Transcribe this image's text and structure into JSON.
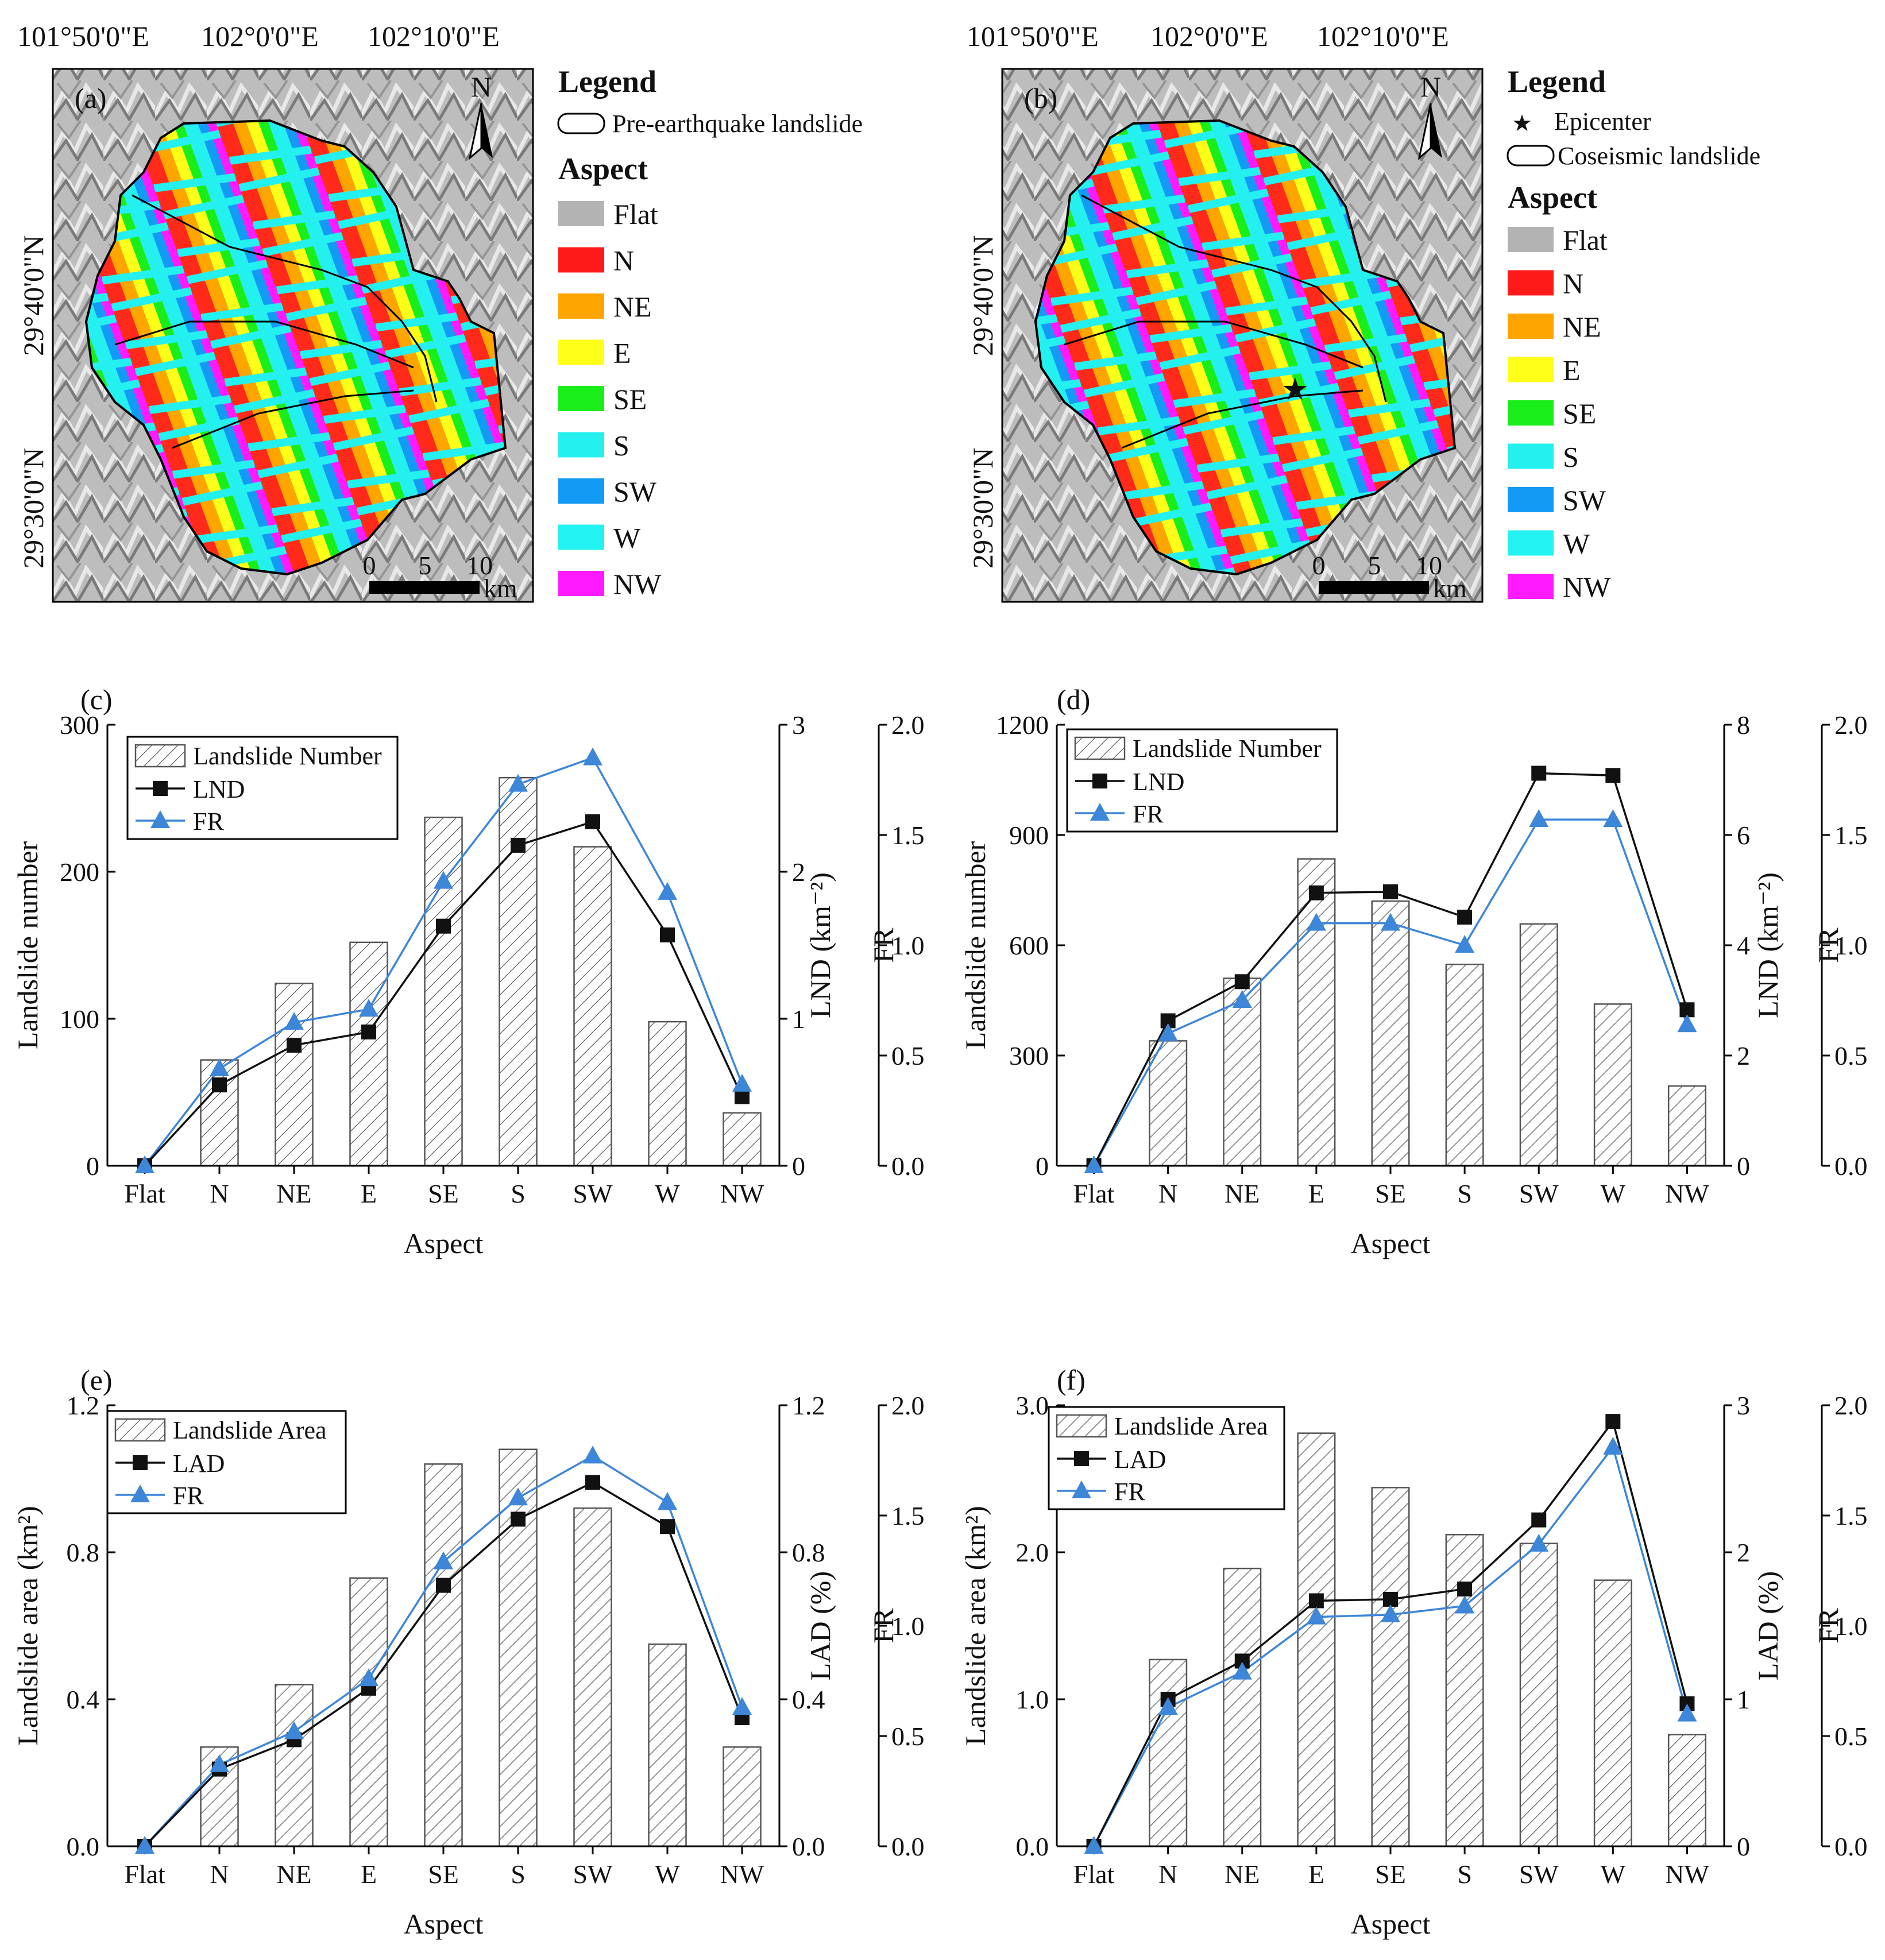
{
  "maps": [
    {
      "panel_label": "(a)",
      "top_coords": [
        "101°50'0\"E",
        "102°0'0\"E",
        "102°10'0\"E"
      ],
      "side_coords": [
        "29°40'0\"N",
        "29°30'0\"N"
      ],
      "north_label": "N",
      "scale_values": [
        "0",
        "5",
        "10"
      ],
      "scale_unit": "km",
      "legend_title": "Legend",
      "legend_items": [
        {
          "symbol": "outline",
          "label": "Pre-earthquake landslide"
        }
      ],
      "aspect_title": "Aspect",
      "aspect_classes": [
        {
          "label": "Flat",
          "color": "#b3b3b3"
        },
        {
          "label": "N",
          "color": "#ff1a1a"
        },
        {
          "label": "NE",
          "color": "#ffa500"
        },
        {
          "label": "E",
          "color": "#ffff1a"
        },
        {
          "label": "SE",
          "color": "#1aee1a"
        },
        {
          "label": "S",
          "color": "#25f0f0"
        },
        {
          "label": "SW",
          "color": "#129af5"
        },
        {
          "label": "W",
          "color": "#22f2f2"
        },
        {
          "label": "NW",
          "color": "#ff1aff"
        }
      ]
    },
    {
      "panel_label": "(b)",
      "top_coords": [
        "101°50'0\"E",
        "102°0'0\"E",
        "102°10'0\"E"
      ],
      "side_coords": [
        "29°40'0\"N",
        "29°30'0\"N"
      ],
      "north_label": "N",
      "scale_values": [
        "0",
        "5",
        "10"
      ],
      "scale_unit": "km",
      "legend_title": "Legend",
      "legend_items": [
        {
          "symbol": "star",
          "label": "Epicenter"
        },
        {
          "symbol": "outline",
          "label": "Coseismic landslide"
        }
      ],
      "aspect_title": "Aspect",
      "aspect_classes": [
        {
          "label": "Flat",
          "color": "#b3b3b3"
        },
        {
          "label": "N",
          "color": "#ff1a1a"
        },
        {
          "label": "NE",
          "color": "#ffa500"
        },
        {
          "label": "E",
          "color": "#ffff1a"
        },
        {
          "label": "SE",
          "color": "#1aee1a"
        },
        {
          "label": "S",
          "color": "#25f0f0"
        },
        {
          "label": "SW",
          "color": "#129af5"
        },
        {
          "label": "W",
          "color": "#22f2f2"
        },
        {
          "label": "NW",
          "color": "#ff1aff"
        }
      ]
    }
  ],
  "chart_data": [
    {
      "panel_label": "(c)",
      "type": "bar",
      "categories": [
        "Flat",
        "N",
        "NE",
        "E",
        "SE",
        "S",
        "SW",
        "W",
        "NW"
      ],
      "xlabel": "Aspect",
      "ylabel": "Landslide number",
      "y2label": "LND (km⁻²)",
      "y3label": "FR",
      "ylim": [
        0,
        300
      ],
      "yticks": [
        0,
        100,
        200,
        300
      ],
      "y2lim": [
        0,
        3
      ],
      "y2ticks": [
        0,
        1,
        2,
        3
      ],
      "y3lim": [
        0,
        2
      ],
      "y3ticks": [
        "0.0",
        "0.5",
        "1.0",
        "1.5",
        "2.0"
      ],
      "bars": {
        "name": "Landslide Number",
        "values": [
          0,
          72,
          124,
          152,
          237,
          264,
          217,
          98,
          36
        ]
      },
      "line": {
        "name": "LND",
        "values": [
          0,
          0.55,
          0.82,
          0.91,
          1.63,
          2.18,
          2.34,
          1.57,
          0.47
        ]
      },
      "fr": {
        "name": "FR",
        "values": [
          0,
          0.44,
          0.65,
          0.71,
          1.29,
          1.73,
          1.85,
          1.24,
          0.37
        ]
      }
    },
    {
      "panel_label": "(d)",
      "type": "bar",
      "categories": [
        "Flat",
        "N",
        "NE",
        "E",
        "SE",
        "S",
        "SW",
        "W",
        "NW"
      ],
      "xlabel": "Aspect",
      "ylabel": "Landslide number",
      "y2label": "LND (km⁻²)",
      "y3label": "FR",
      "ylim": [
        0,
        1200
      ],
      "yticks": [
        0,
        300,
        600,
        900,
        1200
      ],
      "y2lim": [
        0,
        8
      ],
      "y2ticks": [
        0,
        2,
        4,
        6,
        8
      ],
      "y3lim": [
        0,
        2
      ],
      "y3ticks": [
        "0.0",
        "0.5",
        "1.0",
        "1.5",
        "2.0"
      ],
      "bars": {
        "name": "Landslide Number",
        "values": [
          0,
          340,
          510,
          835,
          720,
          548,
          658,
          440,
          217
        ]
      },
      "line": {
        "name": "LND",
        "values": [
          0,
          2.63,
          3.34,
          4.95,
          4.97,
          4.51,
          7.12,
          7.08,
          2.83
        ]
      },
      "fr": {
        "name": "FR",
        "values": [
          0,
          0.6,
          0.75,
          1.1,
          1.1,
          1.0,
          1.57,
          1.57,
          0.64
        ]
      }
    },
    {
      "panel_label": "(e)",
      "type": "bar",
      "categories": [
        "Flat",
        "N",
        "NE",
        "E",
        "SE",
        "S",
        "SW",
        "W",
        "NW"
      ],
      "xlabel": "Aspect",
      "ylabel": "Landslide area (km²)",
      "y2label": "LAD (%)",
      "y3label": "FR",
      "ylim": [
        0,
        1.2
      ],
      "yticks": [
        "0.0",
        "0.4",
        "0.8",
        "1.2"
      ],
      "y2lim": [
        0,
        1.2
      ],
      "y2ticks": [
        "0.0",
        "0.4",
        "0.8",
        "1.2"
      ],
      "y3lim": [
        0,
        2
      ],
      "y3ticks": [
        "0.0",
        "0.5",
        "1.0",
        "1.5",
        "2.0"
      ],
      "bars": {
        "name": "Landslide Area",
        "values": [
          0,
          0.27,
          0.44,
          0.73,
          1.04,
          1.08,
          0.92,
          0.55,
          0.27
        ]
      },
      "line": {
        "name": "LAD",
        "values": [
          0,
          0.21,
          0.29,
          0.43,
          0.71,
          0.89,
          0.99,
          0.87,
          0.35
        ]
      },
      "fr": {
        "name": "FR",
        "values": [
          0,
          0.37,
          0.52,
          0.76,
          1.29,
          1.58,
          1.77,
          1.56,
          0.63
        ]
      }
    },
    {
      "panel_label": "(f)",
      "type": "bar",
      "categories": [
        "Flat",
        "N",
        "NE",
        "E",
        "SE",
        "S",
        "SW",
        "W",
        "NW"
      ],
      "xlabel": "Aspect",
      "ylabel": "Landslide area (km²)",
      "y2label": "LAD (%)",
      "y3label": "FR",
      "ylim": [
        0,
        3.0
      ],
      "yticks": [
        "0.0",
        "1.0",
        "2.0",
        "3.0"
      ],
      "y2lim": [
        0,
        3
      ],
      "y2ticks": [
        "0",
        "1",
        "2",
        "3"
      ],
      "y3lim": [
        0,
        2
      ],
      "y3ticks": [
        "0.0",
        "0.5",
        "1.0",
        "1.5",
        "2.0"
      ],
      "bars": {
        "name": "Landslide Area",
        "values": [
          0,
          1.27,
          1.89,
          2.81,
          2.44,
          2.12,
          2.06,
          1.81,
          0.76
        ]
      },
      "line": {
        "name": "LAD",
        "values": [
          0,
          1.0,
          1.26,
          1.67,
          1.68,
          1.75,
          2.22,
          2.89,
          0.97
        ]
      },
      "fr": {
        "name": "FR",
        "values": [
          0,
          0.63,
          0.79,
          1.04,
          1.05,
          1.09,
          1.37,
          1.81,
          0.6
        ]
      }
    }
  ]
}
